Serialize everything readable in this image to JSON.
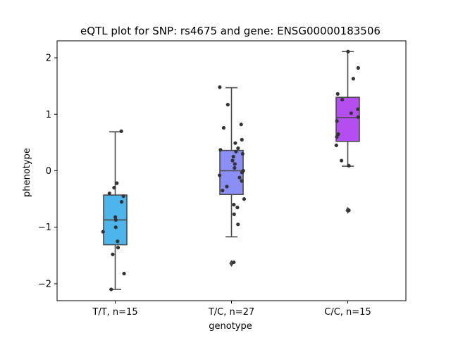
{
  "chart_data": {
    "type": "box",
    "title": "eQTL plot for SNP: rs4675 and gene: ENSG00000183506",
    "xlabel": "genotype",
    "ylabel": "phenotype",
    "ylim": [
      -2.3,
      2.3
    ],
    "yticks": [
      2,
      1,
      0,
      -1,
      -2
    ],
    "ytick_labels": [
      "2",
      "1",
      "0",
      "−1",
      "−2"
    ],
    "grid": false,
    "legend": "none",
    "categories": [
      "T/T, n=15",
      "T/C, n=27",
      "C/C, n=15"
    ],
    "boxes": [
      {
        "category": "T/T, n=15",
        "color": "#4cb5ec",
        "whisker_low": -2.1,
        "q1": -1.31,
        "median": -0.87,
        "q3": -0.43,
        "whisker_high": 0.69,
        "outliers": [],
        "points": [
          0.7,
          -0.22,
          -0.3,
          -0.4,
          -0.45,
          -0.55,
          -0.82,
          -0.87,
          -1.0,
          -1.08,
          -1.25,
          -1.36,
          -1.48,
          -1.82,
          -2.1
        ]
      },
      {
        "category": "T/C, n=27",
        "color": "#8b8ef4",
        "whisker_low": -1.17,
        "q1": -0.42,
        "median": 0.0,
        "q3": 0.36,
        "whisker_high": 1.47,
        "outliers": [
          -1.64
        ],
        "points": [
          1.48,
          1.17,
          0.82,
          0.76,
          0.55,
          0.49,
          0.4,
          0.37,
          0.34,
          0.3,
          0.25,
          0.18,
          0.12,
          0.05,
          0.0,
          -0.03,
          -0.08,
          -0.12,
          -0.18,
          -0.28,
          -0.35,
          -0.5,
          -0.6,
          -0.65,
          -0.77,
          -0.95,
          -1.62
        ]
      },
      {
        "category": "C/C, n=15",
        "color": "#b44ef1",
        "whisker_low": 0.08,
        "q1": 0.52,
        "median": 0.94,
        "q3": 1.3,
        "whisker_high": 2.11,
        "outliers": [
          -0.7
        ],
        "points": [
          2.11,
          1.82,
          1.63,
          1.36,
          1.26,
          1.09,
          1.02,
          0.95,
          0.88,
          0.65,
          0.6,
          0.45,
          0.18,
          0.09,
          -0.7
        ]
      }
    ]
  }
}
